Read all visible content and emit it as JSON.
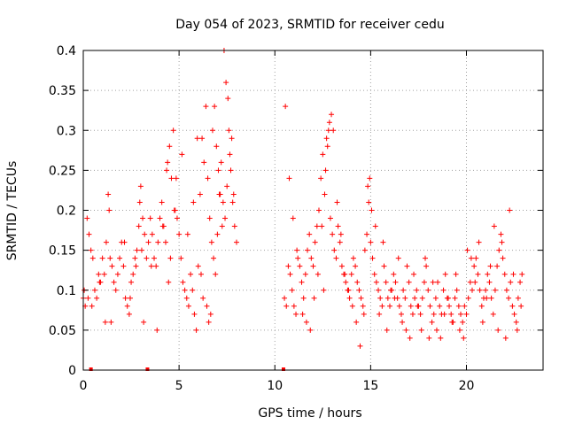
{
  "chart_data": {
    "type": "scatter",
    "title": "Day 054 of 2023, SRMTID for receiver cedu",
    "xlabel": "GPS time / hours",
    "ylabel": "SRMTID / TECUs",
    "xlim": [
      0,
      24
    ],
    "ylim": [
      0,
      0.4
    ],
    "x_ticks": [
      0,
      5,
      10,
      15,
      20
    ],
    "x_tick_labels": [
      "0",
      "5",
      "10",
      "15",
      "20"
    ],
    "y_ticks": [
      0,
      0.05,
      0.1,
      0.15,
      0.2,
      0.25,
      0.3,
      0.35,
      0.4
    ],
    "y_tick_labels": [
      "0",
      "0.05",
      "0.1",
      "0.15",
      "0.2",
      "0.25",
      "0.3",
      "0.35",
      "0.4"
    ],
    "grid": true,
    "marker": "+",
    "colors": {
      "series": "#ff0000",
      "grid": "#a0a0a0",
      "axis": "#000000"
    },
    "zero_markers_x": [
      0.4,
      3.35,
      10.45
    ],
    "series": [
      {
        "name": "SRMTID",
        "x": [
          0.0,
          0.1,
          0.2,
          0.3,
          0.4,
          0.5,
          0.6,
          0.7,
          0.8,
          0.9,
          1.0,
          1.1,
          1.2,
          1.3,
          1.4,
          1.5,
          1.6,
          1.7,
          1.8,
          1.9,
          2.0,
          2.1,
          2.2,
          2.3,
          2.4,
          2.5,
          2.6,
          2.7,
          2.8,
          2.9,
          3.0,
          3.1,
          3.2,
          3.3,
          3.4,
          3.5,
          3.6,
          3.7,
          3.8,
          3.9,
          4.0,
          4.1,
          4.2,
          4.3,
          4.4,
          4.5,
          4.6,
          4.7,
          4.8,
          4.9,
          5.0,
          5.1,
          5.2,
          5.3,
          5.4,
          5.5,
          5.6,
          5.7,
          5.8,
          5.9,
          6.0,
          6.1,
          6.2,
          6.3,
          6.4,
          6.5,
          6.6,
          6.7,
          6.8,
          6.9,
          7.0,
          7.1,
          7.2,
          7.3,
          7.4,
          7.5,
          7.6,
          7.7,
          7.8,
          7.9,
          8.0,
          10.5,
          10.6,
          10.7,
          10.8,
          10.9,
          11.0,
          11.1,
          11.2,
          11.3,
          11.4,
          11.5,
          11.6,
          11.7,
          11.8,
          11.9,
          12.0,
          12.1,
          12.2,
          12.3,
          12.4,
          12.5,
          12.6,
          12.7,
          12.8,
          12.9,
          13.0,
          13.1,
          13.2,
          13.3,
          13.4,
          13.5,
          13.6,
          13.7,
          13.8,
          13.9,
          14.0,
          14.1,
          14.2,
          14.3,
          14.4,
          14.5,
          14.6,
          14.7,
          14.8,
          14.9,
          15.0,
          15.1,
          15.2,
          15.3,
          15.4,
          15.5,
          15.6,
          15.7,
          15.8,
          15.9,
          16.0,
          16.1,
          16.2,
          16.3,
          16.4,
          16.5,
          16.6,
          16.7,
          16.8,
          16.9,
          17.0,
          17.1,
          17.2,
          17.3,
          17.4,
          17.5,
          17.6,
          17.7,
          17.8,
          17.9,
          18.0,
          18.1,
          18.2,
          18.3,
          18.4,
          18.5,
          18.6,
          18.7,
          18.8,
          18.9,
          19.0,
          19.1,
          19.2,
          19.3,
          19.4,
          19.5,
          19.6,
          19.7,
          19.8,
          19.9,
          20.0,
          20.1,
          20.2,
          20.3,
          20.4,
          20.5,
          20.6,
          20.7,
          20.8,
          20.9,
          21.0,
          21.1,
          21.2,
          21.3,
          21.4,
          21.5,
          21.6,
          21.7,
          21.8,
          21.9,
          22.0,
          22.1,
          22.2,
          22.3,
          22.4,
          22.5,
          22.6,
          22.7,
          22.8,
          22.9,
          0.05,
          0.25,
          0.45,
          0.85,
          1.15,
          1.35,
          1.45,
          2.15,
          2.45,
          2.75,
          2.95,
          3.05,
          3.15,
          3.55,
          3.85,
          4.15,
          4.35,
          4.45,
          4.55,
          4.75,
          4.85,
          5.15,
          5.45,
          5.75,
          5.95,
          6.15,
          6.25,
          6.45,
          6.55,
          6.65,
          6.75,
          6.85,
          6.95,
          7.05,
          7.15,
          7.25,
          7.35,
          7.45,
          7.55,
          7.65,
          7.75,
          7.85,
          10.55,
          10.75,
          10.95,
          11.15,
          11.45,
          11.65,
          11.85,
          12.05,
          12.25,
          12.45,
          12.55,
          12.65,
          12.75,
          12.85,
          12.95,
          13.05,
          13.25,
          13.45,
          13.65,
          13.85,
          14.05,
          14.25,
          14.45,
          14.65,
          14.85,
          14.95,
          15.05,
          15.25,
          15.45,
          15.65,
          15.85,
          16.05,
          16.25,
          16.45,
          16.65,
          16.85,
          17.05,
          17.25,
          17.45,
          17.65,
          17.85,
          18.05,
          18.25,
          18.45,
          18.65,
          18.85,
          19.05,
          19.25,
          19.45,
          19.65,
          19.85,
          20.05,
          20.25,
          20.45,
          20.65,
          20.85,
          21.05,
          21.25,
          21.45,
          21.65,
          21.85,
          22.05,
          22.25,
          22.45,
          22.65,
          22.85
        ],
        "y": [
          0.09,
          0.08,
          0.19,
          0.17,
          0.15,
          0.14,
          0.1,
          0.09,
          0.12,
          0.11,
          0.14,
          0.12,
          0.16,
          0.22,
          0.14,
          0.13,
          0.11,
          0.1,
          0.12,
          0.14,
          0.16,
          0.13,
          0.09,
          0.08,
          0.07,
          0.11,
          0.12,
          0.14,
          0.15,
          0.18,
          0.23,
          0.19,
          0.17,
          0.14,
          0.16,
          0.19,
          0.17,
          0.14,
          0.13,
          0.16,
          0.19,
          0.21,
          0.18,
          0.16,
          0.26,
          0.28,
          0.24,
          0.3,
          0.2,
          0.19,
          0.17,
          0.14,
          0.11,
          0.1,
          0.09,
          0.08,
          0.12,
          0.1,
          0.07,
          0.05,
          0.13,
          0.22,
          0.29,
          0.26,
          0.33,
          0.24,
          0.19,
          0.16,
          0.14,
          0.12,
          0.17,
          0.22,
          0.26,
          0.21,
          0.19,
          0.23,
          0.3,
          0.25,
          0.21,
          0.18,
          0.16,
          0.09,
          0.08,
          0.13,
          0.12,
          0.1,
          0.08,
          0.07,
          0.14,
          0.13,
          0.11,
          0.09,
          0.12,
          0.15,
          0.17,
          0.14,
          0.13,
          0.16,
          0.18,
          0.2,
          0.24,
          0.27,
          0.22,
          0.29,
          0.3,
          0.19,
          0.17,
          0.15,
          0.14,
          0.18,
          0.16,
          0.13,
          0.12,
          0.11,
          0.1,
          0.09,
          0.12,
          0.14,
          0.13,
          0.11,
          0.1,
          0.09,
          0.08,
          0.15,
          0.17,
          0.21,
          0.16,
          0.14,
          0.12,
          0.11,
          0.1,
          0.09,
          0.08,
          0.13,
          0.11,
          0.09,
          0.08,
          0.1,
          0.12,
          0.11,
          0.09,
          0.08,
          0.07,
          0.1,
          0.09,
          0.13,
          0.11,
          0.08,
          0.07,
          0.09,
          0.1,
          0.08,
          0.07,
          0.09,
          0.11,
          0.13,
          0.1,
          0.08,
          0.06,
          0.07,
          0.09,
          0.11,
          0.08,
          0.07,
          0.1,
          0.12,
          0.09,
          0.08,
          0.07,
          0.06,
          0.09,
          0.1,
          0.08,
          0.07,
          0.06,
          0.08,
          0.07,
          0.09,
          0.11,
          0.1,
          0.13,
          0.14,
          0.12,
          0.1,
          0.08,
          0.09,
          0.1,
          0.12,
          0.11,
          0.09,
          0.07,
          0.1,
          0.13,
          0.15,
          0.17,
          0.14,
          0.12,
          0.1,
          0.09,
          0.11,
          0.08,
          0.07,
          0.06,
          0.09,
          0.11,
          0.12,
          0.1,
          0.09,
          0.08,
          0.11,
          0.06,
          0.2,
          0.06,
          0.16,
          0.09,
          0.13,
          0.21,
          0.15,
          0.06,
          0.13,
          0.05,
          0.18,
          0.25,
          0.11,
          0.14,
          0.2,
          0.24,
          0.27,
          0.17,
          0.21,
          0.29,
          0.12,
          0.09,
          0.08,
          0.06,
          0.07,
          0.3,
          0.33,
          0.28,
          0.25,
          0.22,
          0.18,
          0.4,
          0.36,
          0.34,
          0.27,
          0.29,
          0.22,
          0.33,
          0.24,
          0.19,
          0.15,
          0.07,
          0.06,
          0.05,
          0.09,
          0.12,
          0.18,
          0.1,
          0.25,
          0.28,
          0.31,
          0.32,
          0.3,
          0.21,
          0.17,
          0.12,
          0.1,
          0.08,
          0.06,
          0.03,
          0.07,
          0.23,
          0.24,
          0.2,
          0.18,
          0.07,
          0.16,
          0.05,
          0.1,
          0.09,
          0.14,
          0.06,
          0.05,
          0.04,
          0.12,
          0.08,
          0.05,
          0.14,
          0.04,
          0.11,
          0.05,
          0.04,
          0.07,
          0.09,
          0.06,
          0.12,
          0.05,
          0.04,
          0.15,
          0.14,
          0.11,
          0.16,
          0.06,
          0.09,
          0.13,
          0.18,
          0.05,
          0.16,
          0.04,
          0.2,
          0.12,
          0.05,
          0.08
        ]
      }
    ]
  }
}
